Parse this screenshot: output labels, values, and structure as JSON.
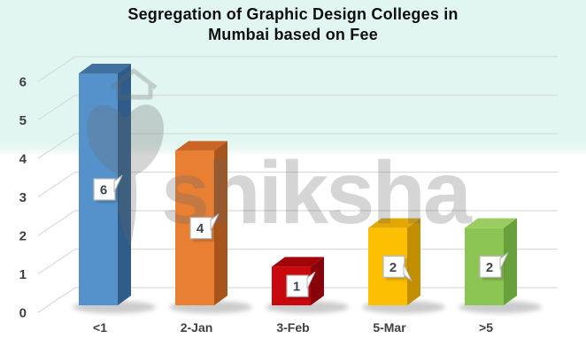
{
  "title": {
    "line1": "Segregation of Graphic Design Colleges in",
    "line2": "Mumbai based on Fee"
  },
  "watermark": {
    "text": "shiksha",
    "color": "#6a6a6a",
    "opacity": 0.28
  },
  "chart_data": {
    "type": "bar",
    "style": "3d-column",
    "title": "Segregation of Graphic Design Colleges in Mumbai based on Fee",
    "categories": [
      "<1",
      "2-Jan",
      "3-Feb",
      "5-Mar",
      ">5"
    ],
    "values": [
      6,
      4,
      1,
      2,
      2
    ],
    "data_labels": [
      "6",
      "4",
      "1",
      "2",
      "2"
    ],
    "xlabel": "",
    "ylabel": "",
    "ylim": [
      0,
      6
    ],
    "yticks": [
      0,
      1,
      2,
      3,
      4,
      5,
      6
    ],
    "grid": true,
    "legend": false,
    "colors": [
      {
        "name": "blue",
        "front": "#5592cc",
        "top": "#41719f",
        "side": "#2f5c88"
      },
      {
        "name": "orange",
        "front": "#e97f33",
        "top": "#ca6523",
        "side": "#a8541d"
      },
      {
        "name": "red",
        "front": "#c9080e",
        "top": "#a10409",
        "side": "#860309"
      },
      {
        "name": "yellow",
        "front": "#fdbf02",
        "top": "#e2a702",
        "side": "#c28f00"
      },
      {
        "name": "green",
        "front": "#8cc553",
        "top": "#9acc62",
        "side": "#68a03c"
      }
    ],
    "gridline_color": "#d6dcda",
    "axis_label_color": "#3f3f3f",
    "data_label_color": "#3b4754",
    "callout_border_color": "#b2b6b8",
    "background_top": "#e2f6f1",
    "background_bottom": "#ffffff"
  }
}
